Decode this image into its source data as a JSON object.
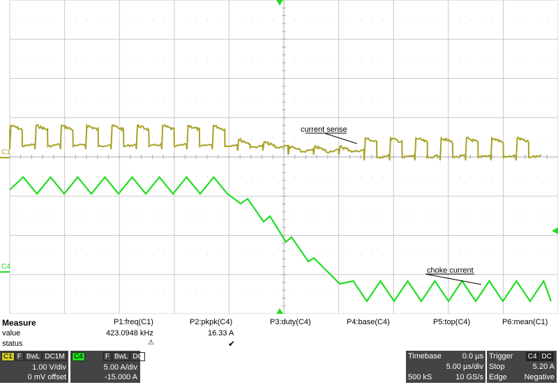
{
  "chart_data": {
    "type": "line",
    "title": "",
    "xlabel": "",
    "ylabel": "",
    "grid": true,
    "series": [
      {
        "name": "C1",
        "color": "#a8a226"
      },
      {
        "name": "C4",
        "color": "#22dd22"
      }
    ],
    "annotations": [
      {
        "text": "current sense"
      },
      {
        "text": "choke current"
      }
    ]
  },
  "channel_markers": {
    "c1": "C1",
    "c4": "C4"
  },
  "measure": {
    "header": "Measure",
    "rows": [
      "value",
      "status"
    ],
    "params": [
      {
        "label": "P1:freq(C1)",
        "value": "423.0948 kHz",
        "status": "⚠"
      },
      {
        "label": "P2:pkpk(C4)",
        "value": "16.33 A",
        "status": "✔"
      },
      {
        "label": "P3:duty(C4)",
        "value": "",
        "status": ""
      },
      {
        "label": "P4:base(C4)",
        "value": "",
        "status": ""
      },
      {
        "label": "P5:top(C4)",
        "value": "",
        "status": ""
      },
      {
        "label": "P6:mean(C1)",
        "value": "",
        "status": ""
      }
    ]
  },
  "c1_box": {
    "name": "C1",
    "tags": [
      "F",
      "BwL",
      "DC1M"
    ],
    "scale": "1.00 V/div",
    "offset": "0 mV offset"
  },
  "c4_box": {
    "name": "C4",
    "tags": [
      "F",
      "BwL",
      "DC"
    ],
    "scale": "5.00 A/div",
    "offset": "-15.000 A"
  },
  "timebase": {
    "label": "Timebase",
    "delay": "0.0 µs",
    "scale": "5.00 µs/div",
    "samples": "500 kS",
    "rate": "10 GS/s"
  },
  "trigger": {
    "label": "Trigger",
    "tags": [
      "C4",
      "DC"
    ],
    "mode": "Stop",
    "level": "5.20 A",
    "type": "Edge",
    "slope": "Negative"
  },
  "colors": {
    "c1": "#a8a226",
    "c4": "#22dd22",
    "grid": "#c8c8c8",
    "panel_dark": "#444444",
    "c1_tag": "#d4cc2a"
  }
}
